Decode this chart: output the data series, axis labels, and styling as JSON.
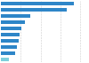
{
  "values": [
    18.5,
    16.5,
    7.5,
    6.0,
    5.2,
    4.8,
    4.4,
    4.0,
    3.6,
    2.0
  ],
  "bar_colors": [
    "#2e86c8",
    "#2e86c8",
    "#2e86c8",
    "#2e86c8",
    "#2e86c8",
    "#2e86c8",
    "#2e86c8",
    "#2e86c8",
    "#2e86c8",
    "#7ecfdc"
  ],
  "background_color": "#ffffff",
  "xlim": [
    0,
    22
  ],
  "bar_height": 0.55,
  "figsize": [
    1.0,
    0.71
  ],
  "dpi": 100
}
